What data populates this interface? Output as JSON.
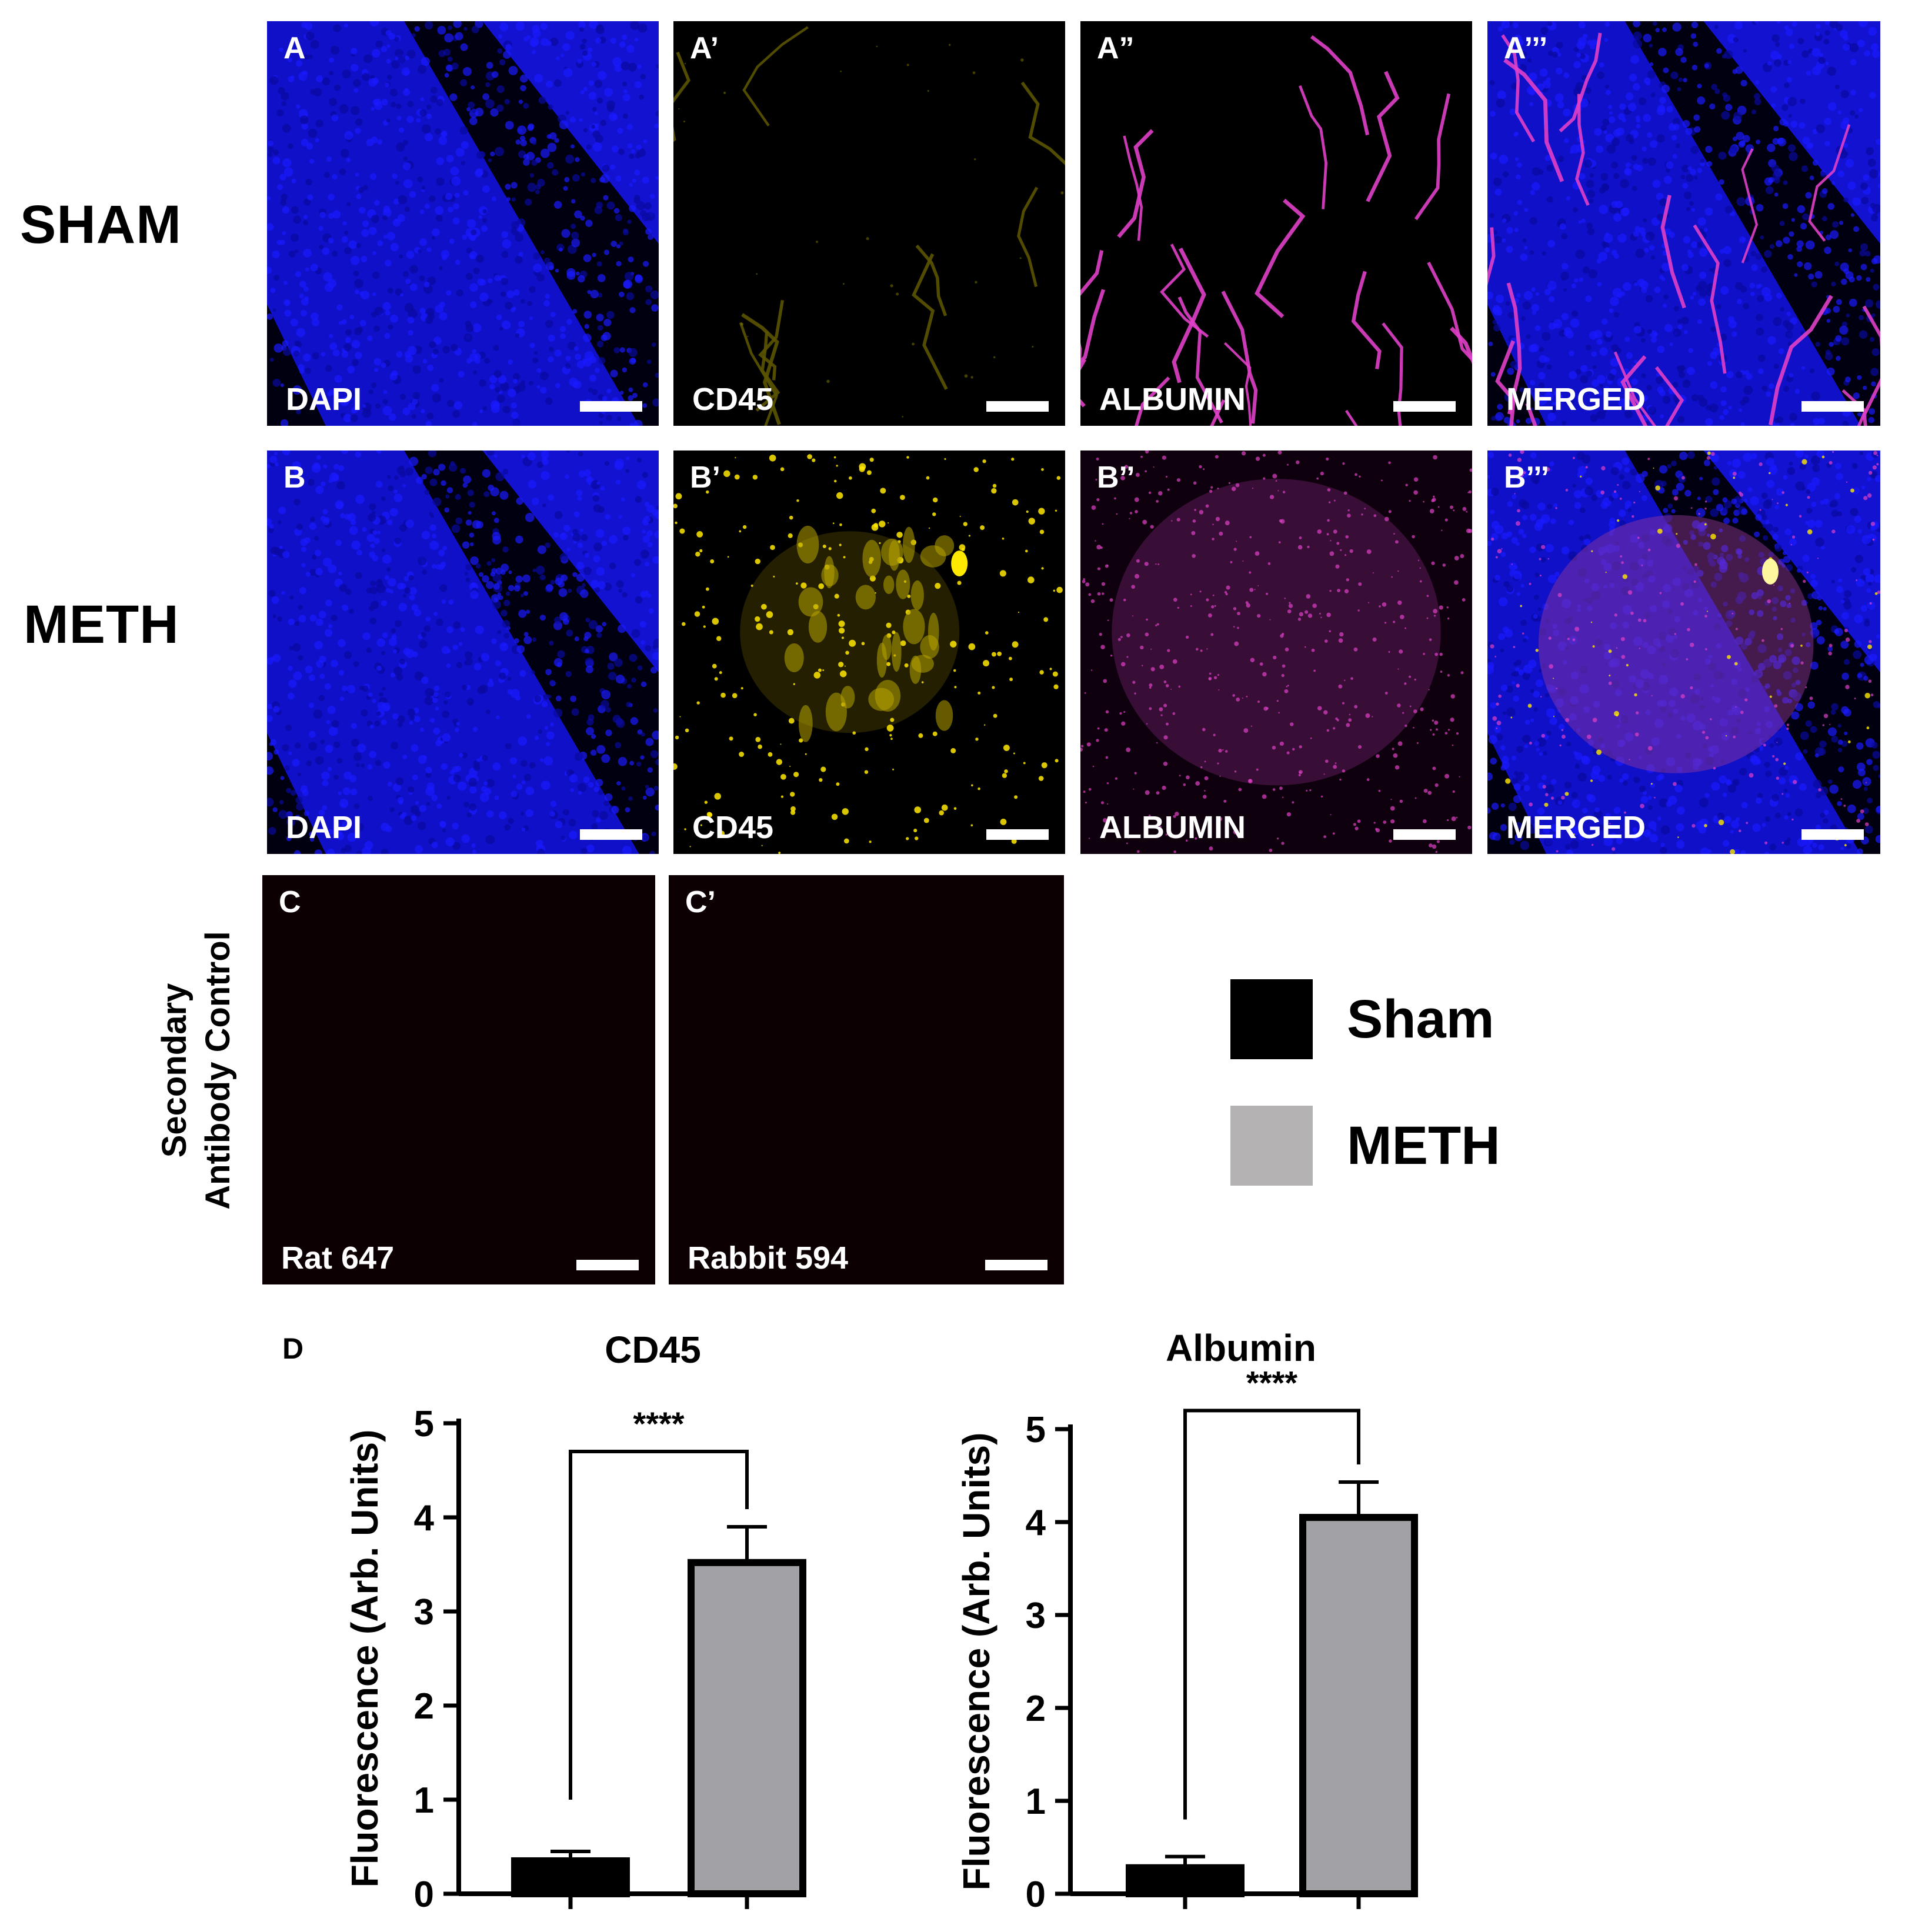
{
  "rows": {
    "sham": "SHAM",
    "meth": "METH",
    "control": [
      "Secondary",
      "Antibody Control"
    ]
  },
  "panels": {
    "A": {
      "letter": "A",
      "stain": "DAPI"
    },
    "A1": {
      "letter": "A’",
      "stain": "CD45"
    },
    "A2": {
      "letter": "A”",
      "stain": "ALBUMIN"
    },
    "A3": {
      "letter": "A’’’",
      "stain": "MERGED"
    },
    "B": {
      "letter": "B",
      "stain": "DAPI"
    },
    "B1": {
      "letter": "B’",
      "stain": "CD45"
    },
    "B2": {
      "letter": "B’’",
      "stain": "ALBUMIN"
    },
    "B3": {
      "letter": "B’’’",
      "stain": "MERGED"
    },
    "C": {
      "letter": "C",
      "stain": "Rat 647"
    },
    "C1": {
      "letter": "C’",
      "stain": "Rabbit 594"
    }
  },
  "stain_colors": {
    "dapi": "#1a1aff",
    "cd45": "#ffe800",
    "albumin": "#e040c8",
    "control_bg": "#0c0003"
  },
  "legend": [
    {
      "label": "Sham",
      "color": "#000000"
    },
    {
      "label": "METH",
      "color": "#b4b2b2"
    }
  ],
  "d_label": "D",
  "chart_data": [
    {
      "type": "bar",
      "title": "CD45",
      "ylabel": "Fluorescence (Arb. Units)",
      "categories": [
        "Sham",
        "METH"
      ],
      "values": [
        0.35,
        3.52
      ],
      "errors": [
        0.1,
        0.38
      ],
      "colors": [
        "#000000",
        "#a2a1a5"
      ],
      "ylim": [
        0,
        5
      ],
      "yticks": [
        "0",
        "1",
        "2",
        "3",
        "4",
        "5"
      ],
      "significance": "****",
      "bracket_from": [
        1.0,
        4.7
      ]
    },
    {
      "type": "bar",
      "title": "Albumin",
      "ylabel": "Fluorescence (Arb. Units)",
      "categories": [
        "Sham",
        "METH"
      ],
      "values": [
        0.28,
        4.05
      ],
      "errors": [
        0.12,
        0.38
      ],
      "colors": [
        "#000000",
        "#a2a1a5"
      ],
      "ylim": [
        0,
        5
      ],
      "yticks": [
        "0",
        "1",
        "2",
        "3",
        "4",
        "5"
      ],
      "significance": "****",
      "bracket_from": [
        0.8,
        5.2
      ]
    }
  ]
}
